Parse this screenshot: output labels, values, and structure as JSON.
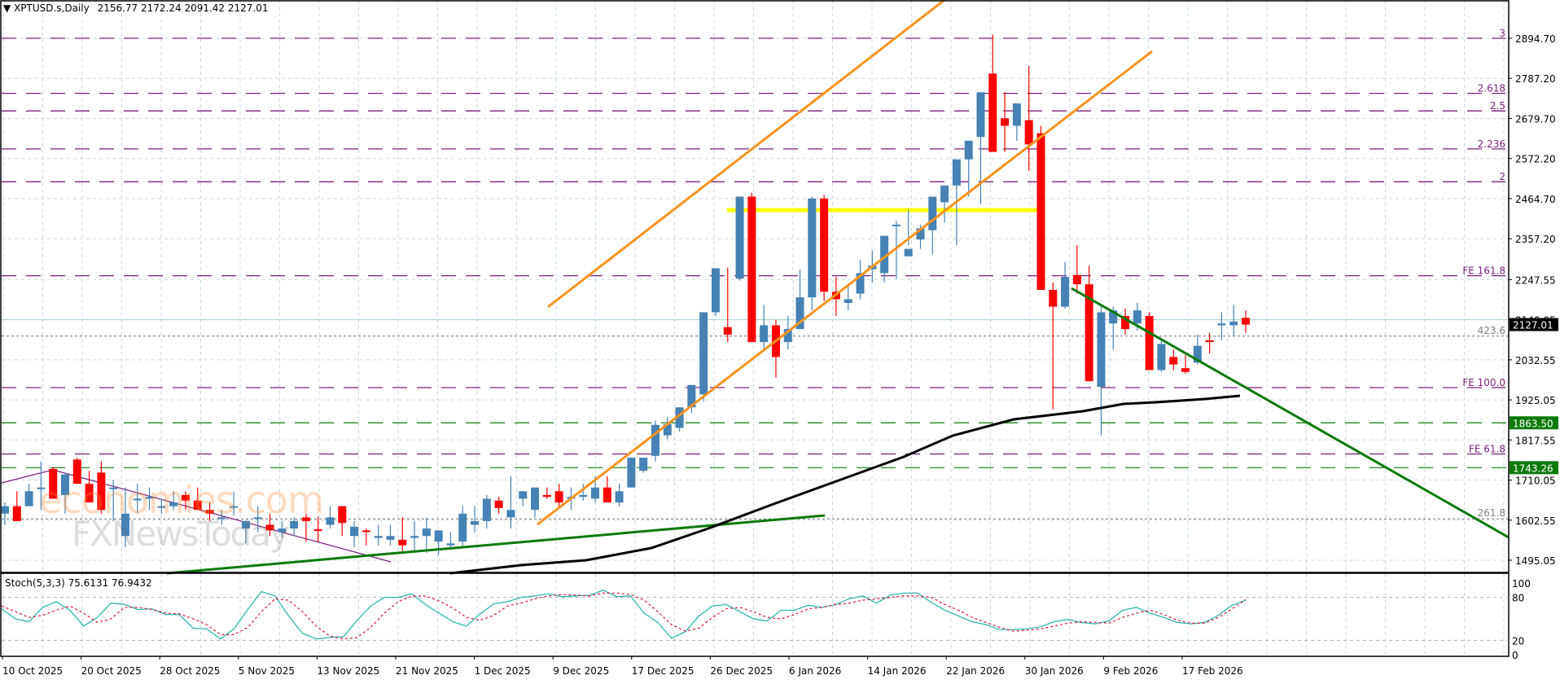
{
  "header": {
    "symbol": "XPTUSD.s,Daily",
    "ohlc": "2156.77 2172.24 2091.42 2127.01"
  },
  "stoch_header": "Stoch(5,3,3) 75.6131 76.9432",
  "watermark": {
    "line1": "economies.com",
    "line2": "FXNewsToday"
  },
  "colors": {
    "bull": "#4682b4",
    "bear": "#ff0000",
    "channel": "#f7931e",
    "resistance": "#ffff00",
    "trend_green": "#0b7a0b",
    "ma": "#000000",
    "fib": "#7b1f7b",
    "stoch_main": "#20b2aa",
    "stoch_signal": "#dc143c"
  },
  "chart_data": {
    "type": "candlestick",
    "title": "XPTUSD.s, Daily",
    "ylim": [
      1440,
      2950
    ],
    "y_ticks": [
      2894.7,
      2787.2,
      2679.7,
      2572.2,
      2464.7,
      2357.2,
      2247.55,
      2140.05,
      2032.55,
      1925.05,
      1817.55,
      1710.05,
      1602.55,
      1495.05
    ],
    "x_tick_labels": [
      "10 Oct 2025",
      "20 Oct 2025",
      "28 Oct 2025",
      "5 Nov 2025",
      "13 Nov 2025",
      "21 Nov 2025",
      "1 Dec 2025",
      "9 Dec 2025",
      "17 Dec 2025",
      "26 Dec 2025",
      "6 Jan 2026",
      "14 Jan 2026",
      "22 Jan 2026",
      "30 Jan 2026",
      "9 Feb 2026",
      "17 Feb 2026"
    ],
    "current_price": "2127.01",
    "price_labels": [
      {
        "value": "1863.50",
        "color": "#0b7a0b"
      },
      {
        "value": "1743.26",
        "color": "#0b7a0b"
      }
    ],
    "fib_levels": [
      {
        "label": "3",
        "price": 2894.7
      },
      {
        "label": "2.618",
        "price": 2747
      },
      {
        "label": "2.5",
        "price": 2700
      },
      {
        "label": "2.236",
        "price": 2598
      },
      {
        "label": "2",
        "price": 2510
      },
      {
        "label": "FE 161.8",
        "price": 2258
      },
      {
        "label": "FE 100.0",
        "price": 1958
      },
      {
        "label": "FE 61.8",
        "price": 1780
      }
    ],
    "fib_ext_grey": [
      {
        "label": "423.6",
        "price": 2096
      },
      {
        "label": "261.8",
        "price": 1606
      }
    ],
    "support_lines": [
      1863.5,
      1743.26
    ],
    "candles": [
      [
        1620,
        1650,
        1590,
        1640
      ],
      [
        1640,
        1680,
        1600,
        1600
      ],
      [
        1640,
        1700,
        1640,
        1680
      ],
      [
        1690,
        1760,
        1630,
        1690
      ],
      [
        1740,
        1745,
        1690,
        1660
      ],
      [
        1670,
        1730,
        1620,
        1725
      ],
      [
        1765,
        1770,
        1700,
        1700
      ],
      [
        1700,
        1735,
        1650,
        1650
      ],
      [
        1730,
        1760,
        1620,
        1630
      ],
      [
        1690,
        1710,
        1600,
        1690
      ],
      [
        1560,
        1690,
        1530,
        1620
      ],
      [
        1660,
        1700,
        1620,
        1660
      ],
      [
        1660,
        1690,
        1630,
        1665
      ],
      [
        1640,
        1660,
        1620,
        1640
      ],
      [
        1640,
        1680,
        1630,
        1650
      ],
      [
        1670,
        1680,
        1630,
        1655
      ],
      [
        1655,
        1690,
        1640,
        1630
      ],
      [
        1630,
        1650,
        1600,
        1620
      ],
      [
        1610,
        1630,
        1590,
        1610
      ],
      [
        1640,
        1680,
        1615,
        1640
      ],
      [
        1580,
        1600,
        1540,
        1600
      ],
      [
        1610,
        1640,
        1570,
        1610
      ],
      [
        1590,
        1620,
        1560,
        1575
      ],
      [
        1570,
        1600,
        1555,
        1580
      ],
      [
        1580,
        1610,
        1560,
        1600
      ],
      [
        1610,
        1620,
        1545,
        1600
      ],
      [
        1578,
        1612,
        1545,
        1575
      ],
      [
        1590,
        1640,
        1580,
        1610
      ],
      [
        1640,
        1640,
        1560,
        1595
      ],
      [
        1560,
        1600,
        1530,
        1585
      ],
      [
        1575,
        1580,
        1535,
        1572
      ],
      [
        1555,
        1590,
        1535,
        1560
      ],
      [
        1550,
        1590,
        1535,
        1560
      ],
      [
        1550,
        1610,
        1520,
        1535
      ],
      [
        1555,
        1600,
        1520,
        1560
      ],
      [
        1560,
        1610,
        1515,
        1580
      ],
      [
        1545,
        1555,
        1510,
        1575
      ],
      [
        1535,
        1570,
        1525,
        1540
      ],
      [
        1545,
        1640,
        1530,
        1620
      ],
      [
        1590,
        1640,
        1570,
        1600
      ],
      [
        1600,
        1670,
        1580,
        1660
      ],
      [
        1655,
        1665,
        1620,
        1635
      ],
      [
        1610,
        1720,
        1580,
        1630
      ],
      [
        1660,
        1680,
        1640,
        1680
      ],
      [
        1630,
        1680,
        1610,
        1690
      ],
      [
        1670,
        1690,
        1660,
        1665
      ],
      [
        1680,
        1700,
        1640,
        1650
      ],
      [
        1660,
        1690,
        1630,
        1665
      ],
      [
        1665,
        1700,
        1655,
        1670
      ],
      [
        1660,
        1720,
        1650,
        1690
      ],
      [
        1690,
        1720,
        1670,
        1650
      ],
      [
        1650,
        1700,
        1640,
        1680
      ],
      [
        1690,
        1770,
        1690,
        1770
      ],
      [
        1735,
        1770,
        1730,
        1770
      ],
      [
        1775,
        1870,
        1760,
        1858
      ],
      [
        1830,
        1880,
        1820,
        1860
      ],
      [
        1850,
        1900,
        1840,
        1905
      ],
      [
        1905,
        1960,
        1890,
        1965
      ],
      [
        1940,
        2160,
        1920,
        2160
      ],
      [
        2160,
        2245,
        2150,
        2278
      ],
      [
        2120,
        2280,
        2080,
        2100
      ],
      [
        2250,
        2470,
        2245,
        2470
      ],
      [
        2470,
        2480,
        2080,
        2080
      ],
      [
        2080,
        2180,
        2055,
        2125
      ],
      [
        2125,
        2140,
        1985,
        2040
      ],
      [
        2080,
        2150,
        2060,
        2115
      ],
      [
        2115,
        2275,
        2115,
        2200
      ],
      [
        2200,
        2470,
        2165,
        2465
      ],
      [
        2465,
        2475,
        2190,
        2215
      ],
      [
        2215,
        2255,
        2150,
        2195
      ],
      [
        2185,
        2235,
        2165,
        2195
      ],
      [
        2210,
        2300,
        2195,
        2265
      ],
      [
        2275,
        2325,
        2240,
        2285
      ],
      [
        2265,
        2360,
        2240,
        2365
      ],
      [
        2395,
        2405,
        2250,
        2395
      ],
      [
        2310,
        2435,
        2340,
        2330
      ],
      [
        2355,
        2395,
        2330,
        2385
      ],
      [
        2380,
        2470,
        2315,
        2470
      ],
      [
        2455,
        2500,
        2400,
        2500
      ],
      [
        2500,
        2520,
        2340,
        2570
      ],
      [
        2570,
        2620,
        2470,
        2620
      ],
      [
        2630,
        2700,
        2450,
        2750
      ],
      [
        2800,
        2905,
        2590,
        2590
      ],
      [
        2680,
        2750,
        2590,
        2660
      ],
      [
        2660,
        2720,
        2620,
        2720
      ],
      [
        2675,
        2820,
        2540,
        2610
      ],
      [
        2640,
        2660,
        2440,
        2220
      ],
      [
        2220,
        2240,
        1900,
        2175
      ],
      [
        2175,
        2295,
        2170,
        2255
      ],
      [
        2260,
        2340,
        2210,
        2235
      ],
      [
        2235,
        2285,
        1975,
        1975
      ],
      [
        1960,
        2175,
        1830,
        2160
      ],
      [
        2130,
        2175,
        2060,
        2165
      ],
      [
        2150,
        2170,
        2100,
        2115
      ],
      [
        2130,
        2185,
        2110,
        2165
      ],
      [
        2150,
        2160,
        2010,
        2005
      ],
      [
        2005,
        2085,
        2000,
        2075
      ],
      [
        2040,
        2060,
        2005,
        2020
      ],
      [
        2010,
        2045,
        1995,
        2000
      ],
      [
        2025,
        2100,
        2020,
        2070
      ],
      [
        2085,
        2105,
        2050,
        2080
      ],
      [
        2125,
        2160,
        2085,
        2130
      ],
      [
        2125,
        2180,
        2095,
        2135
      ],
      [
        2145,
        2165,
        2105,
        2127
      ]
    ],
    "stoch_ylim": [
      0,
      100
    ],
    "stoch_levels": [
      20,
      80
    ],
    "stoch_main": [
      64,
      50,
      46,
      66,
      74,
      62,
      40,
      52,
      72,
      70,
      63,
      64,
      56,
      56,
      37,
      36,
      22,
      36,
      63,
      88,
      82,
      54,
      30,
      22,
      24,
      25,
      48,
      68,
      80,
      80,
      85,
      70,
      58,
      46,
      40,
      57,
      71,
      74,
      80,
      82,
      85,
      81,
      82,
      83,
      90,
      81,
      82,
      58,
      45,
      23,
      32,
      54,
      68,
      70,
      60,
      50,
      47,
      62,
      62,
      69,
      66,
      70,
      78,
      82,
      72,
      83,
      86,
      86,
      73,
      62,
      54,
      46,
      42,
      35,
      35,
      36,
      39,
      46,
      49,
      45,
      43,
      47,
      62,
      66,
      58,
      52,
      45,
      43,
      45,
      55,
      69,
      76
    ],
    "stoch_signal": [
      68,
      60,
      52,
      55,
      62,
      68,
      58,
      45,
      50,
      66,
      66,
      63,
      58,
      57,
      50,
      42,
      28,
      28,
      38,
      60,
      78,
      76,
      60,
      40,
      26,
      22,
      24,
      38,
      58,
      74,
      82,
      82,
      75,
      65,
      52,
      48,
      55,
      68,
      72,
      78,
      82,
      84,
      83,
      82,
      86,
      86,
      84,
      76,
      60,
      42,
      33,
      37,
      52,
      64,
      66,
      60,
      52,
      50,
      56,
      64,
      66,
      70,
      72,
      76,
      78,
      80,
      82,
      82,
      80,
      70,
      62,
      52,
      45,
      38,
      33,
      34,
      36,
      40,
      44,
      46,
      45,
      44,
      52,
      58,
      62,
      56,
      48,
      44,
      44,
      52,
      64,
      77
    ]
  }
}
